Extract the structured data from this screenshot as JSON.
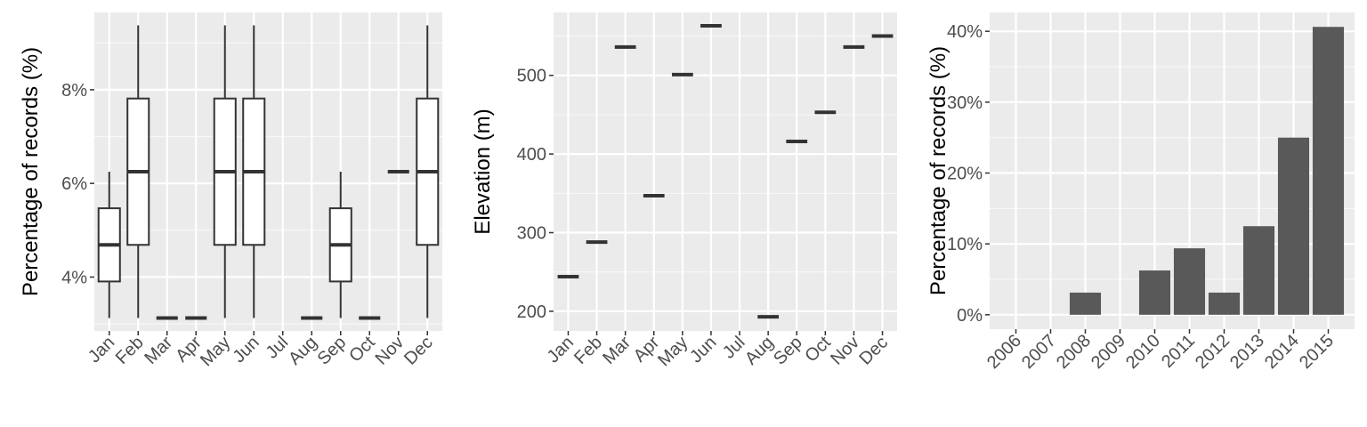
{
  "chart_data": [
    {
      "type": "box",
      "xlabel": "",
      "ylabel": "Percentage of records (%)",
      "categories": [
        "Jan",
        "Feb",
        "Mar",
        "Apr",
        "May",
        "Jun",
        "Jul",
        "Aug",
        "Sep",
        "Oct",
        "Nov",
        "Dec"
      ],
      "ylim": [
        2.85,
        9.65
      ],
      "yticks": [
        4,
        6,
        8
      ],
      "ytick_labels": [
        "4%",
        "6%",
        "8%"
      ],
      "grid": true,
      "boxes": [
        {
          "category": "Jan",
          "min": 3.125,
          "q1": 3.906,
          "median": 4.6875,
          "q3": 5.469,
          "max": 6.25
        },
        {
          "category": "Feb",
          "min": 3.125,
          "q1": 4.6875,
          "median": 6.25,
          "q3": 7.8125,
          "max": 9.375
        },
        {
          "category": "Mar",
          "min": 3.125,
          "q1": 3.125,
          "median": 3.125,
          "q3": 3.125,
          "max": 3.125
        },
        {
          "category": "Apr",
          "min": 3.125,
          "q1": 3.125,
          "median": 3.125,
          "q3": 3.125,
          "max": 3.125
        },
        {
          "category": "May",
          "min": 3.125,
          "q1": 4.6875,
          "median": 6.25,
          "q3": 7.8125,
          "max": 9.375
        },
        {
          "category": "Jun",
          "min": 3.125,
          "q1": 4.6875,
          "median": 6.25,
          "q3": 7.8125,
          "max": 9.375
        },
        {
          "category": "Aug",
          "min": 3.125,
          "q1": 3.125,
          "median": 3.125,
          "q3": 3.125,
          "max": 3.125
        },
        {
          "category": "Sep",
          "min": 3.125,
          "q1": 3.906,
          "median": 4.6875,
          "q3": 5.469,
          "max": 6.25
        },
        {
          "category": "Oct",
          "min": 3.125,
          "q1": 3.125,
          "median": 3.125,
          "q3": 3.125,
          "max": 3.125
        },
        {
          "category": "Nov",
          "min": 6.25,
          "q1": 6.25,
          "median": 6.25,
          "q3": 6.25,
          "max": 6.25
        },
        {
          "category": "Dec",
          "min": 3.125,
          "q1": 4.6875,
          "median": 6.25,
          "q3": 7.8125,
          "max": 9.375
        }
      ]
    },
    {
      "type": "box",
      "xlabel": "",
      "ylabel": "Elevation (m)",
      "categories": [
        "Jan",
        "Feb",
        "Mar",
        "Apr",
        "May",
        "Jun",
        "Jul",
        "Aug",
        "Sep",
        "Oct",
        "Nov",
        "Dec"
      ],
      "ylim": [
        175,
        580
      ],
      "yticks": [
        200,
        300,
        400,
        500
      ],
      "ytick_labels": [
        "200",
        "300",
        "400",
        "500"
      ],
      "grid": true,
      "boxes": [
        {
          "category": "Jan",
          "min": 244,
          "q1": 244,
          "median": 244,
          "q3": 244,
          "max": 244
        },
        {
          "category": "Feb",
          "min": 288,
          "q1": 288,
          "median": 288,
          "q3": 288,
          "max": 288
        },
        {
          "category": "Mar",
          "min": 536,
          "q1": 536,
          "median": 536,
          "q3": 536,
          "max": 536
        },
        {
          "category": "Apr",
          "min": 347,
          "q1": 347,
          "median": 347,
          "q3": 347,
          "max": 347
        },
        {
          "category": "May",
          "min": 501,
          "q1": 501,
          "median": 501,
          "q3": 501,
          "max": 501
        },
        {
          "category": "Jun",
          "min": 563,
          "q1": 563,
          "median": 563,
          "q3": 563,
          "max": 563
        },
        {
          "category": "Aug",
          "min": 193,
          "q1": 193,
          "median": 193,
          "q3": 193,
          "max": 193
        },
        {
          "category": "Sep",
          "min": 416,
          "q1": 416,
          "median": 416,
          "q3": 416,
          "max": 416
        },
        {
          "category": "Oct",
          "min": 453,
          "q1": 453,
          "median": 453,
          "q3": 453,
          "max": 453
        },
        {
          "category": "Nov",
          "min": 536,
          "q1": 536,
          "median": 536,
          "q3": 536,
          "max": 536
        },
        {
          "category": "Dec",
          "min": 550,
          "q1": 550,
          "median": 550,
          "q3": 550,
          "max": 550
        }
      ]
    },
    {
      "type": "bar",
      "xlabel": "",
      "ylabel": "Percentage of records (%)",
      "categories": [
        "2006",
        "2007",
        "2008",
        "2009",
        "2010",
        "2011",
        "2012",
        "2013",
        "2014",
        "2015"
      ],
      "values": [
        0,
        0,
        3.125,
        0,
        6.25,
        9.375,
        3.125,
        12.5,
        25.0,
        40.625
      ],
      "ylim": [
        -2.03,
        42.66
      ],
      "yticks": [
        0,
        10,
        20,
        30,
        40
      ],
      "ytick_labels": [
        "0%",
        "10%",
        "20%",
        "30%",
        "40%"
      ],
      "grid": true,
      "bar_color": "#595959"
    }
  ]
}
